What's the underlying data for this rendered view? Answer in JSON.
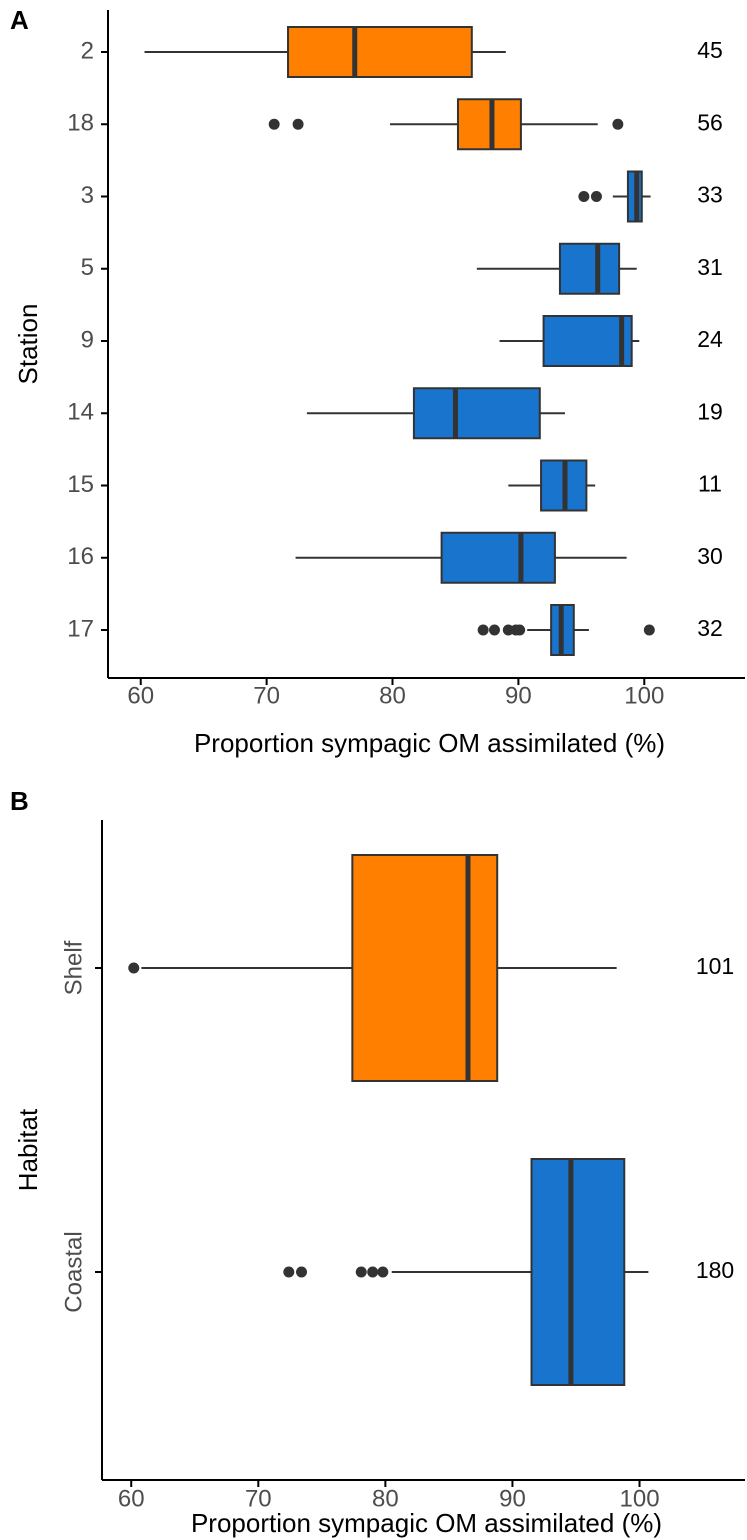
{
  "chart_data": [
    {
      "type": "boxplot",
      "panel": "A",
      "xlabel": "Proportion sympagic OM assimilated (%)",
      "ylabel": "Station",
      "categories": [
        "2",
        "18",
        "3",
        "5",
        "9",
        "14",
        "15",
        "16",
        "17"
      ],
      "colors": [
        "#ff7f00",
        "#ff7f00",
        "#1874cd",
        "#1874cd",
        "#1874cd",
        "#1874cd",
        "#1874cd",
        "#1874cd",
        "#1874cd"
      ],
      "boxes": [
        {
          "min": 60.3,
          "q1": 71.7,
          "median": 77.0,
          "q3": 86.3,
          "max": 89.0,
          "outliers": []
        },
        {
          "min": 79.8,
          "q1": 85.2,
          "median": 87.9,
          "q3": 90.2,
          "max": 96.3,
          "outliers": [
            70.6,
            72.5,
            97.9
          ]
        },
        {
          "min": 97.5,
          "q1": 98.7,
          "median": 99.4,
          "q3": 99.8,
          "max": 100.5,
          "outliers": [
            95.2,
            96.2
          ]
        },
        {
          "min": 86.7,
          "q1": 93.3,
          "median": 96.3,
          "q3": 98.0,
          "max": 99.4,
          "outliers": []
        },
        {
          "min": 88.5,
          "q1": 92.0,
          "median": 98.2,
          "q3": 99.0,
          "max": 99.6,
          "outliers": []
        },
        {
          "min": 73.2,
          "q1": 81.7,
          "median": 85.0,
          "q3": 91.7,
          "max": 93.7,
          "outliers": []
        },
        {
          "min": 89.2,
          "q1": 91.8,
          "median": 93.7,
          "q3": 95.4,
          "max": 96.1,
          "outliers": []
        },
        {
          "min": 72.3,
          "q1": 83.9,
          "median": 90.2,
          "q3": 92.9,
          "max": 98.6,
          "outliers": []
        },
        {
          "min": 90.7,
          "q1": 92.6,
          "median": 93.4,
          "q3": 94.4,
          "max": 95.6,
          "outliers": [
            87.2,
            88.1,
            89.2,
            89.8,
            90.1,
            100.4
          ]
        }
      ],
      "counts": [
        45,
        56,
        33,
        31,
        24,
        19,
        11,
        30,
        32
      ],
      "xlim": [
        57.4,
        108
      ],
      "xticks": [
        60,
        70,
        80,
        90,
        100
      ]
    },
    {
      "type": "boxplot",
      "panel": "B",
      "xlabel": "Proportion sympagic OM assimilated (%)",
      "ylabel": "Habitat",
      "categories": [
        "Shelf",
        "Coastal"
      ],
      "colors": [
        "#ff7f00",
        "#1874cd"
      ],
      "boxes": [
        {
          "min": 60.8,
          "q1": 77.4,
          "median": 86.5,
          "q3": 88.8,
          "max": 98.2,
          "outliers": [
            60.2
          ]
        },
        {
          "min": 80.5,
          "q1": 91.5,
          "median": 94.6,
          "q3": 98.8,
          "max": 100.7,
          "outliers": [
            72.4,
            73.4,
            78.1,
            79.0,
            79.8
          ]
        }
      ],
      "counts": [
        101,
        180
      ],
      "xlim": [
        57.7,
        108.3
      ],
      "xticks": [
        60,
        70,
        80,
        90,
        100
      ]
    }
  ]
}
